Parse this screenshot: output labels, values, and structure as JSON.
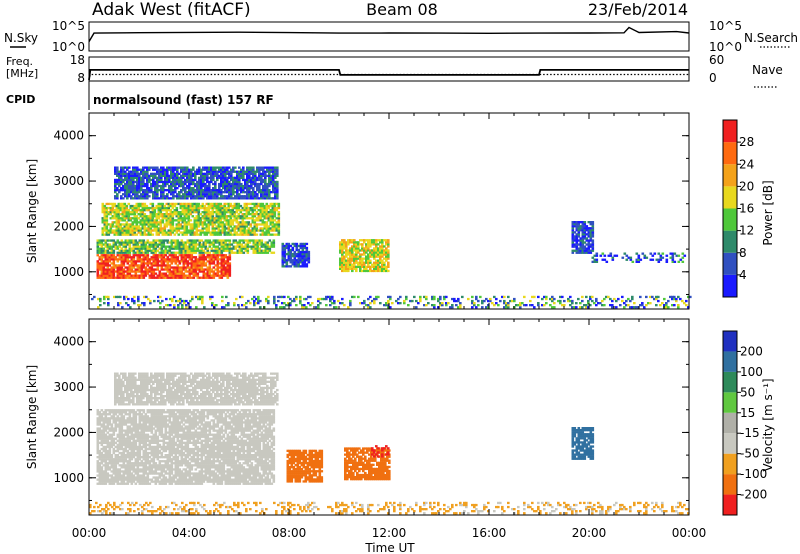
{
  "header": {
    "station": "Adak West (fitACF)",
    "beam": "Beam 08",
    "date": "23/Feb/2014"
  },
  "nsky_panel": {
    "left_label": "N.Sky",
    "right_label": "N.Search",
    "left_ticks": [
      "10^5",
      "10^0"
    ],
    "right_ticks": [
      "10^5",
      "10^0"
    ]
  },
  "freq_panel": {
    "left_label_line1": "Freq.",
    "left_label_line2": "[MHz]",
    "right_label": "Nave",
    "left_ticks": [
      "18",
      "8"
    ],
    "right_ticks": [
      "60",
      "0"
    ]
  },
  "cpid_panel": {
    "label": "CPID",
    "program": "normalsound (fast) 157 RF"
  },
  "x_axis": {
    "title": "Time UT",
    "ticks": [
      "00:00",
      "04:00",
      "08:00",
      "12:00",
      "16:00",
      "20:00",
      "00:00"
    ]
  },
  "power_panel": {
    "ylabel": "Slant Range [km]",
    "yticks": [
      "1000",
      "2000",
      "3000",
      "4000"
    ],
    "colorbar_label": "Power [dB]",
    "colorbar_ticks": [
      "4",
      "8",
      "12",
      "16",
      "20",
      "24",
      "28"
    ]
  },
  "velocity_panel": {
    "ylabel": "Slant Range [km]",
    "yticks": [
      "1000",
      "2000",
      "3000",
      "4000"
    ],
    "colorbar_label": "Velocity [m s⁻¹]",
    "colorbar_ticks": [
      "200",
      "100",
      "50",
      "15",
      "-15",
      "-50",
      "-100",
      "-200"
    ]
  },
  "chart_data": [
    {
      "type": "line",
      "title": "N.Sky / N.Search",
      "x_unit": "hours UT",
      "x": [
        0,
        0.2,
        2,
        4,
        6,
        8,
        10,
        12,
        14,
        16,
        18,
        20,
        21.4,
        21.6,
        22,
        23.5,
        24
      ],
      "series": [
        {
          "name": "N.Sky",
          "values": [
            30,
            1500,
            1800,
            2100,
            2300,
            1900,
            1500,
            1600,
            1500,
            1400,
            1500,
            1600,
            1700,
            20000,
            2000,
            3000,
            1600
          ]
        }
      ],
      "ylim": [
        1,
        100000
      ],
      "log_scale": true
    },
    {
      "type": "line",
      "title": "Freq. / Nave",
      "x_unit": "hours UT",
      "x": [
        0,
        0.05,
        10,
        10.05,
        18,
        18.05,
        24
      ],
      "series": [
        {
          "name": "Freq.",
          "values": [
            8,
            12.6,
            12.6,
            10.3,
            10.3,
            12.6,
            12.6
          ]
        },
        {
          "name": "Nave",
          "values": [
            0,
            15,
            15,
            15,
            15,
            15,
            15
          ]
        }
      ],
      "ylim_left": [
        8,
        18
      ],
      "ylim_right": [
        0,
        60
      ]
    },
    {
      "type": "heatmap",
      "title": "Power [dB]",
      "x_unit": "hours UT",
      "y_unit": "km",
      "xlim": [
        0,
        24
      ],
      "ylim": [
        180,
        4500
      ],
      "color_levels_dB": [
        0,
        4,
        8,
        12,
        16,
        20,
        24,
        28,
        32
      ],
      "colors": [
        "#1a1aff",
        "#3050c0",
        "#2e8a6a",
        "#4fc83a",
        "#e8d81e",
        "#f4a21a",
        "#ff6a10",
        "#f02020"
      ],
      "regions": [
        {
          "t": [
            0.3,
            5.6
          ],
          "r": [
            850,
            1350
          ],
          "power_dB": 28
        },
        {
          "t": [
            0.3,
            7.4
          ],
          "r": [
            1400,
            1700
          ],
          "power_dB": 14
        },
        {
          "t": [
            0.5,
            7.6
          ],
          "r": [
            1800,
            2500
          ],
          "power_dB": 16
        },
        {
          "t": [
            1.0,
            7.5
          ],
          "r": [
            2600,
            3300
          ],
          "power_dB": 6
        },
        {
          "t": [
            7.7,
            8.8
          ],
          "r": [
            1100,
            1600
          ],
          "power_dB": 5
        },
        {
          "t": [
            10.0,
            12.0
          ],
          "r": [
            1000,
            1700
          ],
          "power_dB": 18
        },
        {
          "t": [
            19.3,
            20.1
          ],
          "r": [
            1400,
            2100
          ],
          "power_dB": 5
        },
        {
          "t": [
            20.1,
            23.8
          ],
          "r": [
            1200,
            1400
          ],
          "power_dB": 5
        },
        {
          "t": [
            0.0,
            24.0
          ],
          "r": [
            200,
            450
          ],
          "power_dB": 10
        }
      ]
    },
    {
      "type": "heatmap",
      "title": "Velocity [m s⁻¹]",
      "x_unit": "hours UT",
      "y_unit": "km",
      "xlim": [
        0,
        24
      ],
      "ylim": [
        180,
        4500
      ],
      "color_levels": [
        200,
        100,
        50,
        15,
        -15,
        -50,
        -100,
        -200
      ],
      "colors": [
        "#2030c0",
        "#3070a0",
        "#2e8a5a",
        "#60c840",
        "#c8c8c0",
        "#f0a020",
        "#f07010",
        "#f02020"
      ],
      "regions": [
        {
          "t": [
            0.3,
            7.4
          ],
          "r": [
            850,
            2500
          ],
          "velocity": 0
        },
        {
          "t": [
            1.0,
            7.5
          ],
          "r": [
            2600,
            3300
          ],
          "velocity": 0
        },
        {
          "t": [
            7.9,
            9.3
          ],
          "r": [
            900,
            1600
          ],
          "velocity": -60
        },
        {
          "t": [
            10.2,
            12.0
          ],
          "r": [
            950,
            1650
          ],
          "velocity": -80
        },
        {
          "t": [
            11.2,
            12.0
          ],
          "r": [
            1450,
            1700
          ],
          "velocity": -200
        },
        {
          "t": [
            19.3,
            20.1
          ],
          "r": [
            1400,
            2100
          ],
          "velocity": 150
        },
        {
          "t": [
            0.0,
            24.0
          ],
          "r": [
            200,
            450
          ],
          "velocity": -20
        }
      ]
    }
  ]
}
